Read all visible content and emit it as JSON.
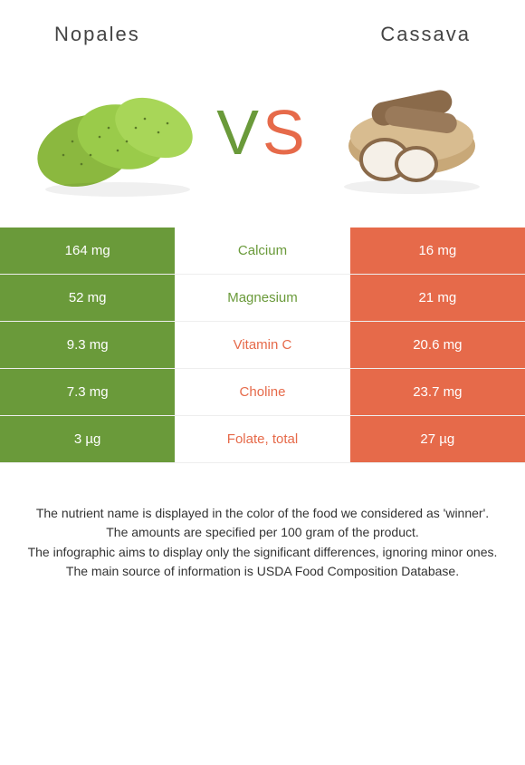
{
  "colors": {
    "green": "#6a9a3a",
    "orange": "#e66a4a",
    "white": "#ffffff",
    "text_dark": "#333333"
  },
  "food_left": {
    "name": "Nopales"
  },
  "food_right": {
    "name": "Cassava"
  },
  "vs": {
    "v": "V",
    "s": "S"
  },
  "rows": [
    {
      "left": "164 mg",
      "label": "Calcium",
      "right": "16 mg",
      "winner": "left"
    },
    {
      "left": "52 mg",
      "label": "Magnesium",
      "right": "21 mg",
      "winner": "left"
    },
    {
      "left": "9.3 mg",
      "label": "Vitamin C",
      "right": "20.6 mg",
      "winner": "right"
    },
    {
      "left": "7.3 mg",
      "label": "Choline",
      "right": "23.7 mg",
      "winner": "right"
    },
    {
      "left": "3 µg",
      "label": "Folate, total",
      "right": "27 µg",
      "winner": "right"
    }
  ],
  "footer": {
    "l1": "The nutrient name is displayed in the color of the food we considered as 'winner'.",
    "l2": "The amounts are specified per 100 gram of the product.",
    "l3": "The infographic aims to display only the significant differences, ignoring minor ones.",
    "l4": "The main source of information is USDA Food Composition Database."
  }
}
